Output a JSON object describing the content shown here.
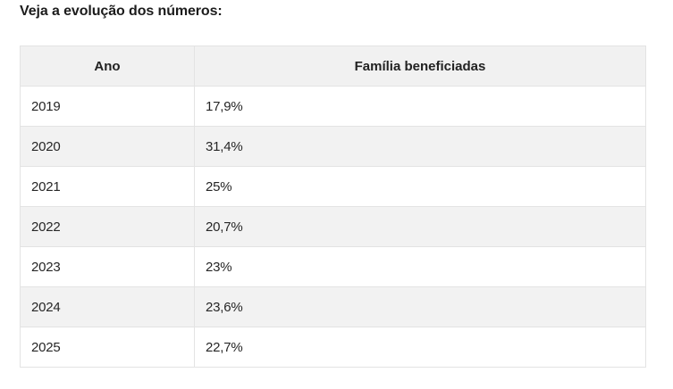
{
  "heading": "Veja a evolução dos números:",
  "table": {
    "headers": [
      "Ano",
      "Família beneficiadas"
    ],
    "rows": [
      [
        "2019",
        "17,9%"
      ],
      [
        "2020",
        "31,4%"
      ],
      [
        "2021",
        "25%"
      ],
      [
        "2022",
        "20,7%"
      ],
      [
        "2023",
        "23%"
      ],
      [
        "2024",
        "23,6%"
      ],
      [
        "2025",
        "22,7%"
      ]
    ]
  },
  "colors": {
    "header_background": "#f1f1f1",
    "stripe_background": "#f2f2f2",
    "border": "#e3e3e3"
  }
}
